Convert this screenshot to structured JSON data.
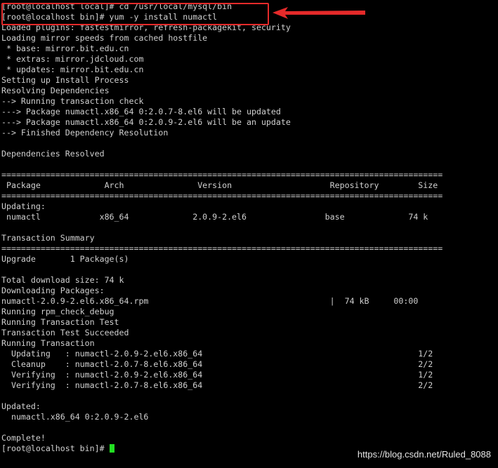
{
  "terminal": {
    "lines": [
      "[root@localhost local]# cd /usr/local/mysql/bin",
      "[root@localhost bin]# yum -y install numactl",
      "Loaded plugins: fastestmirror, refresh-packagekit, security",
      "Loading mirror speeds from cached hostfile",
      " * base: mirror.bit.edu.cn",
      " * extras: mirror.jdcloud.com",
      " * updates: mirror.bit.edu.cn",
      "Setting up Install Process",
      "Resolving Dependencies",
      "--> Running transaction check",
      "---> Package numactl.x86_64 0:2.0.7-8.el6 will be updated",
      "---> Package numactl.x86_64 0:2.0.9-2.el6 will be an update",
      "--> Finished Dependency Resolution",
      "",
      "Dependencies Resolved",
      "",
      "==========================================================================================",
      " Package             Arch               Version                    Repository        Size",
      "==========================================================================================",
      "Updating:",
      " numactl            x86_64             2.0.9-2.el6                base             74 k",
      "",
      "Transaction Summary",
      "==========================================================================================",
      "Upgrade       1 Package(s)",
      "",
      "Total download size: 74 k",
      "Downloading Packages:",
      "numactl-2.0.9-2.el6.x86_64.rpm                                     |  74 kB     00:00",
      "Running rpm_check_debug",
      "Running Transaction Test",
      "Transaction Test Succeeded",
      "Running Transaction",
      "  Updating   : numactl-2.0.9-2.el6.x86_64                                            1/2",
      "  Cleanup    : numactl-2.0.7-8.el6.x86_64                                            2/2",
      "  Verifying  : numactl-2.0.9-2.el6.x86_64                                            1/2",
      "  Verifying  : numactl-2.0.7-8.el6.x86_64                                            2/2",
      "",
      "Updated:",
      "  numactl.x86_64 0:2.0.9-2.el6",
      "",
      "Complete!"
    ],
    "prompt": "[root@localhost bin]# ",
    "cursor_color": "#22e022",
    "highlight_color": "#e52a2a"
  },
  "watermark": "https://blog.csdn.net/Ruled_8088"
}
